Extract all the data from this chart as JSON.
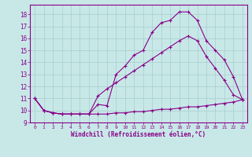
{
  "bg_color": "#c8e8e8",
  "line_color": "#880088",
  "grid_color": "#a8cccc",
  "xlim": [
    -0.5,
    23.5
  ],
  "ylim": [
    9.0,
    18.8
  ],
  "yticks": [
    9,
    10,
    11,
    12,
    13,
    14,
    15,
    16,
    17,
    18
  ],
  "xticks": [
    0,
    1,
    2,
    3,
    4,
    5,
    6,
    7,
    8,
    9,
    10,
    11,
    12,
    13,
    14,
    15,
    16,
    17,
    18,
    19,
    20,
    21,
    22,
    23
  ],
  "xlabel": "Windchill (Refroidissement éolien,°C)",
  "line1_x": [
    0,
    1,
    2,
    3,
    4,
    5,
    6,
    7,
    8,
    9,
    10,
    11,
    12,
    13,
    14,
    15,
    16,
    17,
    18,
    19,
    20,
    21,
    22,
    23
  ],
  "line1_y": [
    11.0,
    10.0,
    9.8,
    9.7,
    9.7,
    9.7,
    9.7,
    10.5,
    10.4,
    13.0,
    13.7,
    14.6,
    15.0,
    16.5,
    17.3,
    17.5,
    18.2,
    18.2,
    17.5,
    15.8,
    15.0,
    14.2,
    12.8,
    10.9
  ],
  "line2_x": [
    0,
    1,
    2,
    3,
    4,
    5,
    6,
    7,
    8,
    9,
    10,
    11,
    12,
    13,
    14,
    15,
    16,
    17,
    18,
    19,
    20,
    21,
    22,
    23
  ],
  "line2_y": [
    11.0,
    10.0,
    9.8,
    9.7,
    9.7,
    9.7,
    9.7,
    11.2,
    11.8,
    12.3,
    12.8,
    13.3,
    13.8,
    14.3,
    14.8,
    15.3,
    15.8,
    16.2,
    15.8,
    14.5,
    13.5,
    12.5,
    11.3,
    10.9
  ],
  "line3_x": [
    0,
    1,
    2,
    3,
    4,
    5,
    6,
    7,
    8,
    9,
    10,
    11,
    12,
    13,
    14,
    15,
    16,
    17,
    18,
    19,
    20,
    21,
    22,
    23
  ],
  "line3_y": [
    11.0,
    10.0,
    9.8,
    9.7,
    9.7,
    9.7,
    9.7,
    9.7,
    9.7,
    9.8,
    9.8,
    9.9,
    9.9,
    10.0,
    10.1,
    10.1,
    10.2,
    10.3,
    10.3,
    10.4,
    10.5,
    10.6,
    10.7,
    10.9
  ]
}
